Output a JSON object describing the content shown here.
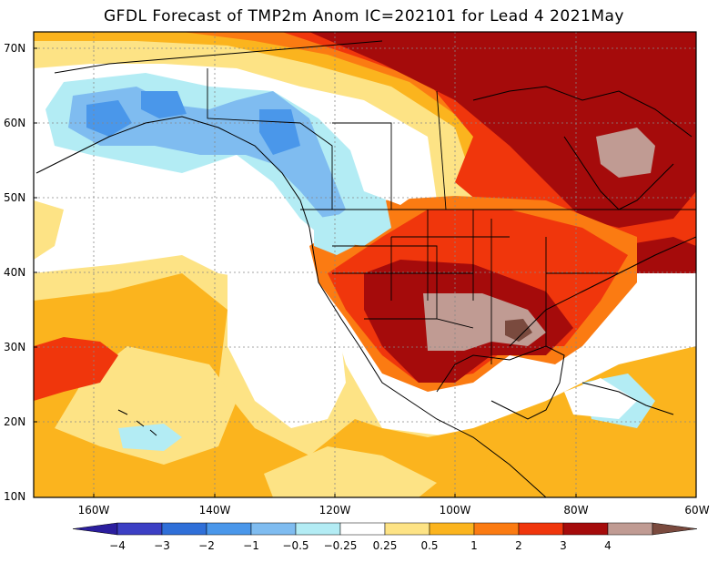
{
  "title": "GFDL Forecast of TMP2m Anom IC=202101 for Lead 4 2021May",
  "lat_labels": [
    "70N",
    "60N",
    "50N",
    "40N",
    "30N",
    "20N",
    "10N"
  ],
  "lon_labels": [
    "160W",
    "140W",
    "120W",
    "100W",
    "80W",
    "60W"
  ],
  "colorbar": {
    "labels": [
      "−4",
      "−3",
      "−2",
      "−1",
      "−0.5",
      "−0.25",
      "0.25",
      "0.5",
      "1",
      "2",
      "3",
      "4"
    ],
    "colors": [
      "#2b1e9e",
      "#3c3fc4",
      "#2f6fd8",
      "#4a97ea",
      "#7fbcf0",
      "#b3ecf4",
      "#ffffff",
      "#fde385",
      "#fbb41e",
      "#fb7b12",
      "#f0360c",
      "#a50b0b",
      "#c09b93",
      "#7a4a3e"
    ]
  },
  "map_colors": {
    "weak_warm": "#fde385",
    "moderate_warm": "#fbb41e",
    "warm": "#fb7b12",
    "strong_warm": "#f0360c",
    "very_strong_warm": "#a50b0b",
    "extreme_warm": "#c09b93",
    "hottest": "#7a4a3e",
    "weak_cool": "#b3ecf4",
    "cool": "#7fbcf0",
    "moderate_cool": "#4a97ea",
    "strong_cool": "#2f6fd8"
  }
}
